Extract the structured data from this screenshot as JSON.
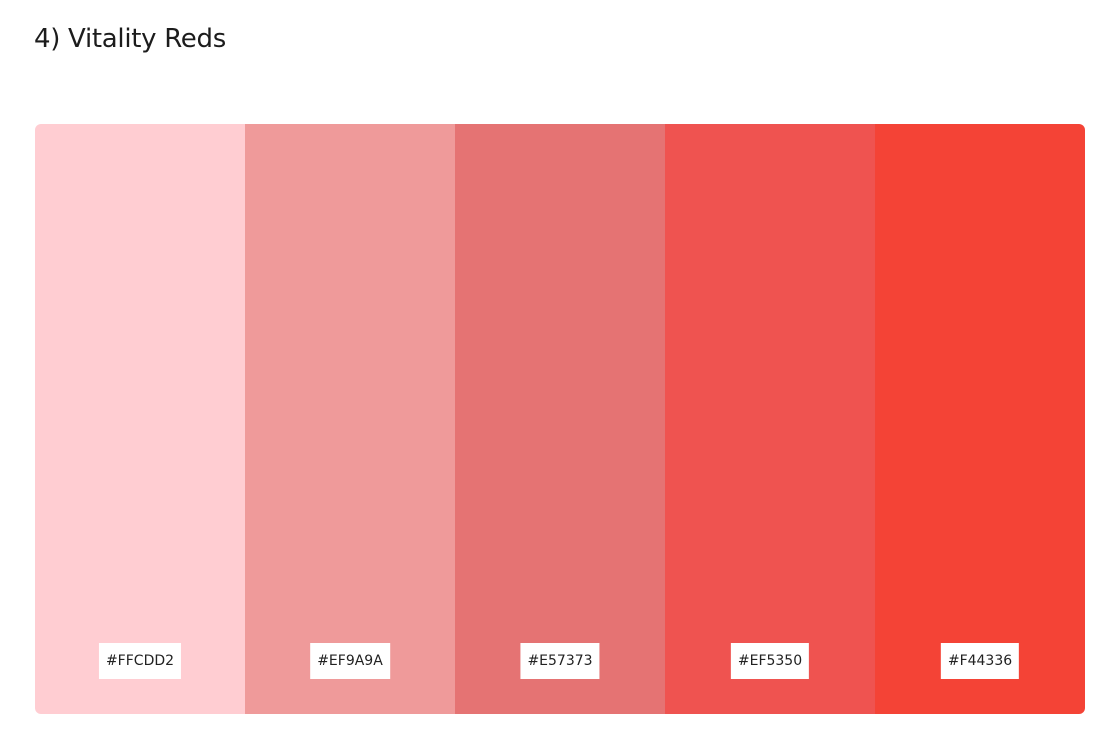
{
  "title": "4) Vitality Reds",
  "swatches": [
    {
      "hex": "#FFCDD2",
      "color": "#FFCDD2"
    },
    {
      "hex": "#EF9A9A",
      "color": "#EF9A9A"
    },
    {
      "hex": "#E57373",
      "color": "#E57373"
    },
    {
      "hex": "#EF5350",
      "color": "#EF5350"
    },
    {
      "hex": "#F44336",
      "color": "#F44336"
    }
  ]
}
